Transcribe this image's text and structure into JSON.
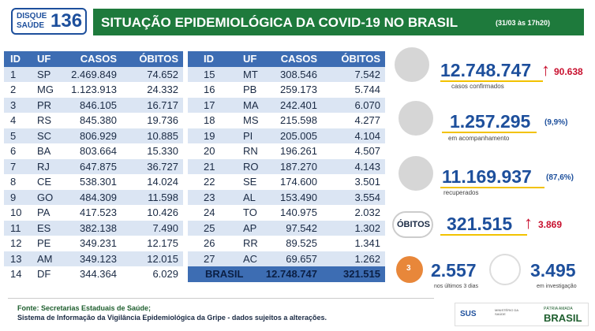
{
  "header": {
    "logo": {
      "line1": "DISQUE",
      "line2": "SAÚDE",
      "number": "136"
    },
    "title": "SITUAÇÃO EPIDEMIOLÓGICA DA COVID-19 NO BRASIL",
    "date": "(31/03 às 17h20)"
  },
  "table": {
    "columns": [
      "ID",
      "UF",
      "CASOS",
      "ÓBITOS"
    ],
    "left_rows": [
      [
        "1",
        "SP",
        "2.469.849",
        "74.652"
      ],
      [
        "2",
        "MG",
        "1.123.913",
        "24.332"
      ],
      [
        "3",
        "PR",
        "846.105",
        "16.717"
      ],
      [
        "4",
        "RS",
        "845.380",
        "19.736"
      ],
      [
        "5",
        "SC",
        "806.929",
        "10.885"
      ],
      [
        "6",
        "BA",
        "803.664",
        "15.330"
      ],
      [
        "7",
        "RJ",
        "647.875",
        "36.727"
      ],
      [
        "8",
        "CE",
        "538.301",
        "14.024"
      ],
      [
        "9",
        "GO",
        "484.309",
        "11.598"
      ],
      [
        "10",
        "PA",
        "417.523",
        "10.426"
      ],
      [
        "11",
        "ES",
        "382.138",
        "7.490"
      ],
      [
        "12",
        "PE",
        "349.231",
        "12.175"
      ],
      [
        "13",
        "AM",
        "349.123",
        "12.015"
      ],
      [
        "14",
        "DF",
        "344.364",
        "6.029"
      ]
    ],
    "right_rows": [
      [
        "15",
        "MT",
        "308.546",
        "7.542"
      ],
      [
        "16",
        "PB",
        "259.173",
        "5.744"
      ],
      [
        "17",
        "MA",
        "242.401",
        "6.070"
      ],
      [
        "18",
        "MS",
        "215.598",
        "4.277"
      ],
      [
        "19",
        "PI",
        "205.005",
        "4.104"
      ],
      [
        "20",
        "RN",
        "196.261",
        "4.507"
      ],
      [
        "21",
        "RO",
        "187.270",
        "4.143"
      ],
      [
        "22",
        "SE",
        "174.600",
        "3.501"
      ],
      [
        "23",
        "AL",
        "153.490",
        "3.554"
      ],
      [
        "24",
        "TO",
        "140.975",
        "2.032"
      ],
      [
        "25",
        "AP",
        "97.542",
        "1.302"
      ],
      [
        "26",
        "RR",
        "89.525",
        "1.341"
      ],
      [
        "27",
        "AC",
        "69.657",
        "1.262"
      ]
    ],
    "total": {
      "label": "BRASIL",
      "casos": "12.748.747",
      "obitos": "321.515"
    }
  },
  "stats": {
    "confirmed": {
      "value": "12.748.747",
      "increase": "90.638",
      "label": "casos confirmados"
    },
    "monitoring": {
      "value": "1.257.295",
      "percent": "(9,9%)",
      "label": "em acompanhamento"
    },
    "recovered": {
      "value": "11.169.937",
      "percent": "(87,6%)",
      "label": "recuperados"
    },
    "deaths": {
      "title": "ÓBITOS",
      "value": "321.515",
      "increase": "3.869"
    },
    "recent": {
      "value": "2.557",
      "label": "nos últimos 3 dias",
      "icon": "3"
    },
    "investigation": {
      "value": "3.495",
      "label": "em investigação"
    }
  },
  "footer": {
    "source1": "Fonte: Secretarias Estaduais de Saúde;",
    "source2": "Sistema de Informação da Vigilância Epidemiológica da Gripe - dados sujeitos a alterações.",
    "sus": "SUS",
    "ministry": "MINISTÉRIO DA SAÚDE",
    "motto": "PÁTRIA AMADA",
    "country": "BRASIL"
  }
}
